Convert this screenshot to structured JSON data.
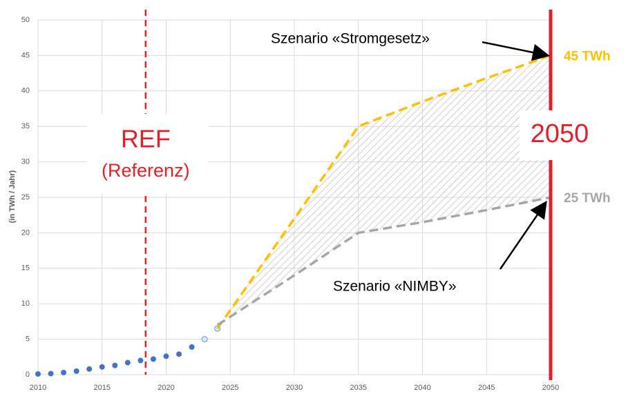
{
  "chart_data": {
    "type": "line",
    "y_label": "(in TWh / Jahr)",
    "xlim": [
      2010,
      2050
    ],
    "ylim": [
      0,
      50
    ],
    "xticks": [
      2010,
      2015,
      2020,
      2025,
      2030,
      2035,
      2040,
      2045,
      2050
    ],
    "yticks": [
      0,
      5,
      10,
      15,
      20,
      25,
      30,
      35,
      40,
      45,
      50
    ],
    "grid": true,
    "series": [
      {
        "style": "dots",
        "color": "#4472c4",
        "x": [
          2010,
          2011,
          2012,
          2013,
          2014,
          2015,
          2016,
          2017,
          2018,
          2019,
          2020,
          2021,
          2022
        ],
        "values": [
          0.1,
          0.15,
          0.3,
          0.5,
          0.8,
          1.1,
          1.3,
          1.7,
          2.0,
          2.2,
          2.6,
          2.9,
          3.9
        ]
      },
      {
        "style": "open-dots",
        "color": "#9dc3e6",
        "x": [
          2023,
          2024
        ],
        "values": [
          5.0,
          6.5
        ]
      },
      {
        "name": "Szenario «Stromgesetz»",
        "style": "dashed",
        "color": "#ffc000",
        "x": [
          2024,
          2030,
          2035,
          2040,
          2045,
          2050
        ],
        "values": [
          6.5,
          22,
          35,
          38.5,
          41.8,
          45
        ],
        "value_labels": [
          null,
          null,
          null,
          null,
          null,
          "45 TWh"
        ]
      },
      {
        "name": "Szenario «NIMBY»",
        "style": "dashed",
        "color": "#a6a6a6",
        "x": [
          2024,
          2030,
          2035,
          2040,
          2045,
          2050
        ],
        "values": [
          7,
          14,
          20,
          21.5,
          23.2,
          25
        ],
        "value_labels": [
          null,
          null,
          null,
          null,
          null,
          "25 TWh"
        ]
      }
    ],
    "ref_line": {
      "x": 2018.4,
      "label": "REF",
      "sublabel": "(Referenz)",
      "color": "#e0202a"
    },
    "target_line": {
      "x": 2050,
      "label": "2050",
      "color": "#e0202a"
    }
  }
}
